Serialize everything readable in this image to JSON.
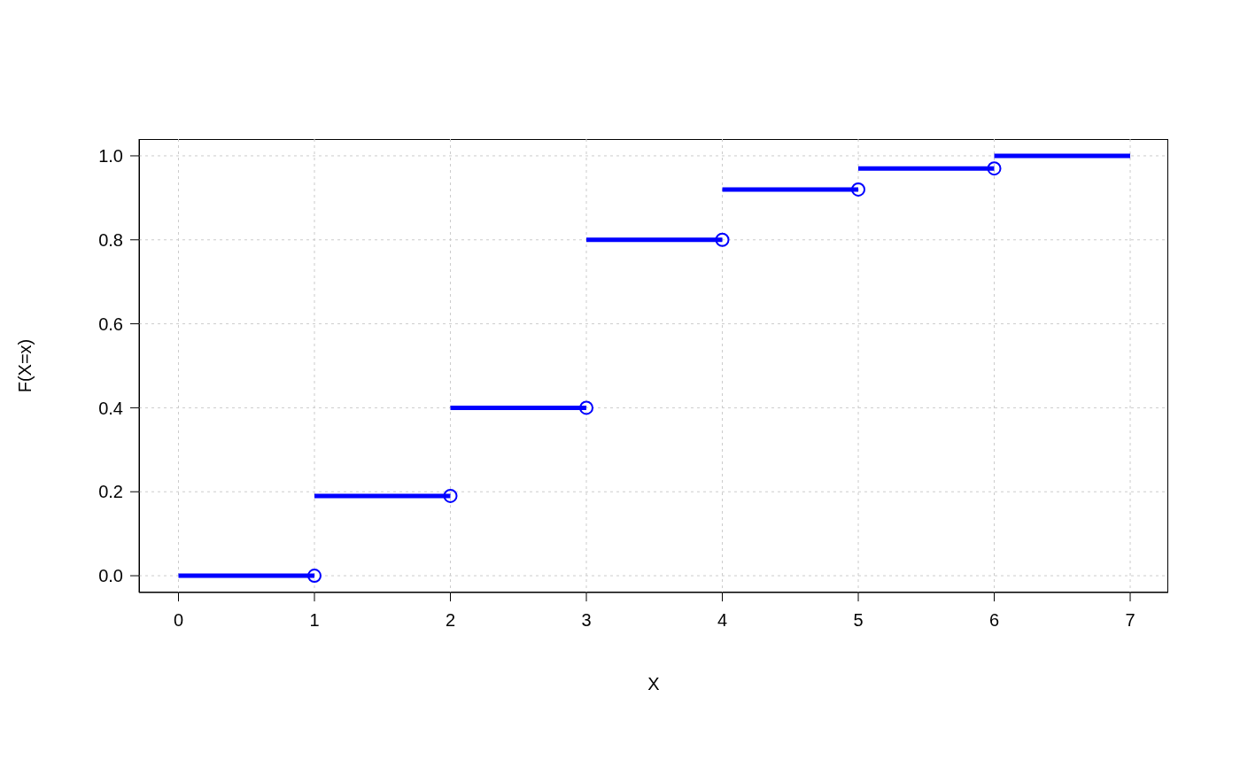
{
  "chart_data": {
    "type": "step",
    "xlabel": "X",
    "ylabel": "F(X=x)",
    "xlim": [
      -0.29,
      7.28
    ],
    "ylim": [
      -0.04,
      1.04
    ],
    "xticks": [
      0,
      1,
      2,
      3,
      4,
      5,
      6,
      7
    ],
    "yticks": [
      {
        "value": 0,
        "label": "0.0"
      },
      {
        "value": 0.2,
        "label": "0.2"
      },
      {
        "value": 0.4,
        "label": "0.4"
      },
      {
        "value": 0.6,
        "label": "0.6"
      },
      {
        "value": 0.8,
        "label": "0.8"
      },
      {
        "value": 1,
        "label": "1.0"
      }
    ],
    "grid": true,
    "legend": false,
    "series": [
      {
        "type": "step",
        "color": "#0000ff",
        "marker": "none",
        "line_style": "solid",
        "x": [
          0,
          1,
          2,
          3,
          4,
          5,
          6,
          7
        ],
        "values": [
          0,
          0.19,
          0.4,
          0.8,
          0.92,
          0.97,
          1,
          1
        ]
      },
      {
        "type": "scatter",
        "color": "#0000ff",
        "marker": "circle",
        "x": [
          1,
          2,
          3,
          4,
          5,
          6
        ],
        "values": [
          0,
          0.19,
          0.4,
          0.8,
          0.92,
          0.97
        ]
      }
    ]
  }
}
